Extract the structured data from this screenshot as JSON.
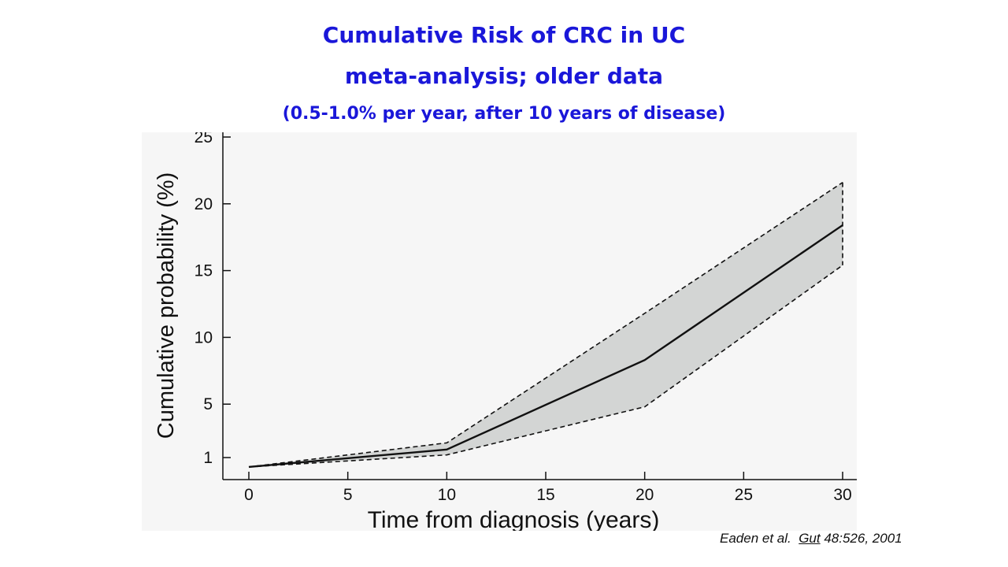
{
  "title_line1": "Cumulative Risk of CRC in UC",
  "title_line2": "meta-analysis; older data",
  "subtitle": "(0.5-1.0% per year, after 10 years of disease)",
  "citation": {
    "authors": "Eaden et al.",
    "journal": "Gut",
    "ref": "48:526, 2001"
  },
  "colors": {
    "title": "#1a17d9",
    "band_fill": "#d3d5d4",
    "line": "#111111"
  },
  "chart_data": {
    "type": "line",
    "title": "",
    "xlabel": "Time from diagnosis (years)",
    "ylabel": "Cumulative probability (%)",
    "xlim": [
      0,
      30
    ],
    "ylim": [
      0,
      25
    ],
    "x_ticks": [
      0,
      5,
      10,
      15,
      20,
      25,
      30
    ],
    "y_ticks": [
      1,
      5,
      10,
      15,
      20,
      25
    ],
    "grid": false,
    "series": [
      {
        "role": "estimate",
        "style": "solid",
        "x": [
          0,
          10,
          20,
          30
        ],
        "y": [
          0.3,
          1.6,
          8.3,
          18.4
        ]
      },
      {
        "role": "upper-ci",
        "style": "dashed",
        "x": [
          0,
          10,
          20,
          30
        ],
        "y": [
          0.3,
          2.1,
          11.8,
          21.6
        ]
      },
      {
        "role": "lower-ci",
        "style": "dashed",
        "x": [
          0,
          10,
          20,
          30
        ],
        "y": [
          0.3,
          1.2,
          4.8,
          15.4
        ]
      }
    ]
  }
}
